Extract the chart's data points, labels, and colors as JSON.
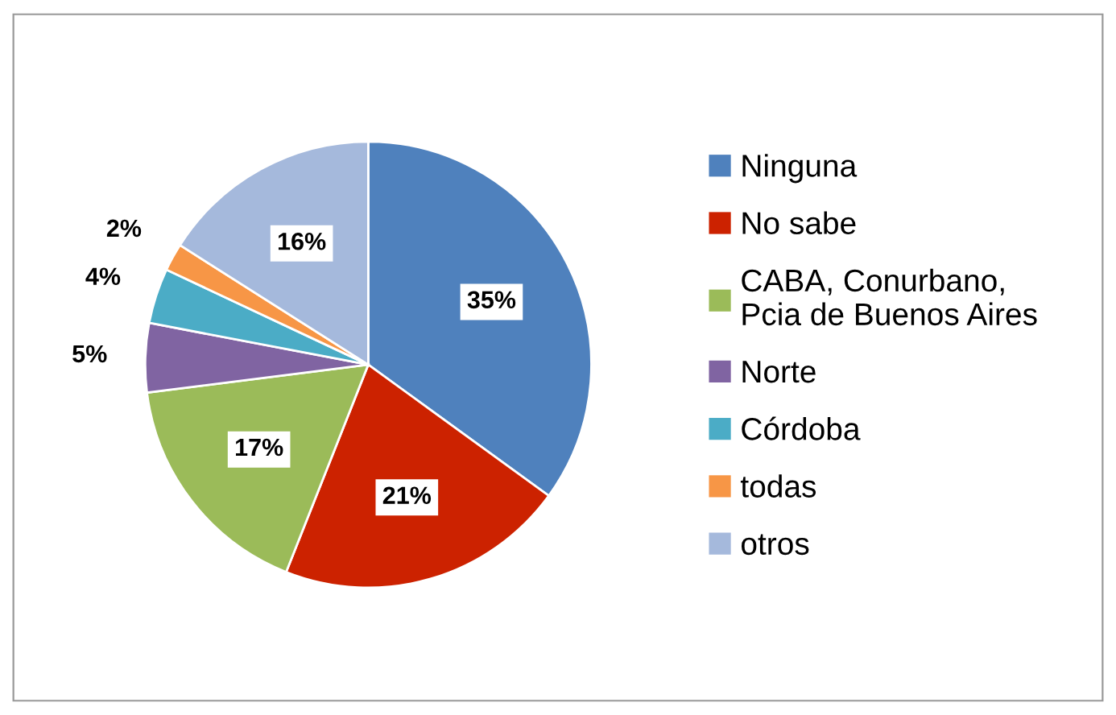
{
  "chart_data": {
    "type": "pie",
    "categories": [
      "Ninguna",
      "No sabe",
      "CABA, Conurbano,\nPcia de Buenos Aires",
      "Norte",
      "Córdoba",
      "todas",
      "otros"
    ],
    "values": [
      35,
      21,
      17,
      5,
      4,
      2,
      16
    ],
    "value_labels": [
      "35%",
      "21%",
      "17%",
      "5%",
      "4%",
      "2%",
      "16%"
    ],
    "colors": [
      "#4f81bd",
      "#cc2200",
      "#9bbb59",
      "#8064a2",
      "#4bacc6",
      "#f79646",
      "#a5b9dc"
    ],
    "legend": "right"
  }
}
